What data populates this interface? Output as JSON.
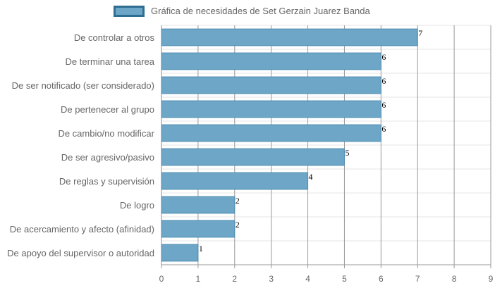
{
  "chart_data": {
    "type": "bar",
    "orientation": "horizontal",
    "categories": [
      "De controlar a otros",
      "De terminar una tarea",
      "De ser notificado (ser considerado)",
      "De pertenecer al grupo",
      "De cambio/no modificar",
      "De ser agresivo/pasivo",
      "De reglas y supervisión",
      "De logro",
      "De acercamiento y afecto (afinidad)",
      "De apoyo del supervisor o autoridad"
    ],
    "series": [
      {
        "name": "Gráfica de necesidades de Set Gerzain Juarez Banda",
        "values": [
          7,
          6,
          6,
          6,
          6,
          5,
          4,
          2,
          2,
          1
        ]
      }
    ],
    "xlim": [
      0,
      9
    ],
    "xticks": [
      0,
      1,
      2,
      3,
      4,
      5,
      6,
      7,
      8,
      9
    ],
    "grid": true,
    "legend_position": "top-center",
    "data_labels": true,
    "bar_color": "#6da6c6",
    "bar_border_color": "#4f8db2",
    "legend_border_color": "#2f6e93",
    "grid_color": "#e5e5e5",
    "vertical_grid_color": "#999999"
  }
}
